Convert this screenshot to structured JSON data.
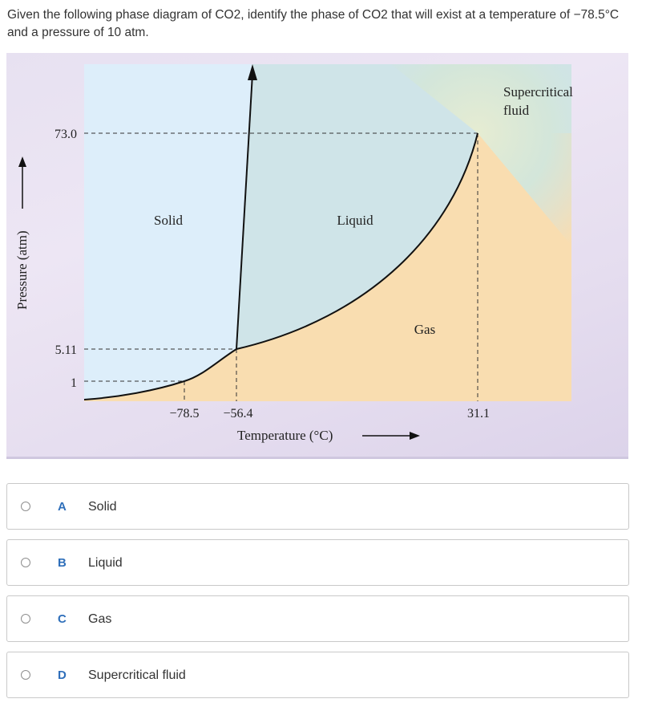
{
  "question": {
    "text": "Given the following phase diagram of CO2, identify the phase of CO2 that will exist at a temperature of −78.5°C and a pressure of 10 atm."
  },
  "diagram": {
    "y_axis_label": "Pressure (atm)",
    "x_axis_label": "Temperature (°C)",
    "y_ticks": [
      "73.0",
      "5.11",
      "1"
    ],
    "x_ticks": [
      "−78.5",
      "−56.4",
      "31.1"
    ],
    "regions": {
      "solid": "Solid",
      "liquid": "Liquid",
      "gas": "Gas",
      "supercritical_line1": "Supercritical",
      "supercritical_line2": "fluid"
    },
    "colors": {
      "solid": "#ddeefa",
      "liquid": "#cfe4e8",
      "gas": "#f9ddb0",
      "supercritical": "#d9e8d0"
    }
  },
  "options": [
    {
      "letter": "A",
      "text": "Solid"
    },
    {
      "letter": "B",
      "text": "Liquid"
    },
    {
      "letter": "C",
      "text": "Gas"
    },
    {
      "letter": "D",
      "text": "Supercritical fluid"
    }
  ]
}
